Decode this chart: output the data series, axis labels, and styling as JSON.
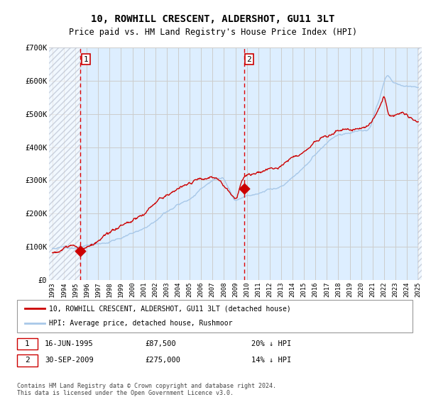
{
  "title": "10, ROWHILL CRESCENT, ALDERSHOT, GU11 3LT",
  "subtitle": "Price paid vs. HM Land Registry's House Price Index (HPI)",
  "ylim": [
    0,
    700000
  ],
  "yticks": [
    0,
    100000,
    200000,
    300000,
    400000,
    500000,
    600000,
    700000
  ],
  "ytick_labels": [
    "£0",
    "£100K",
    "£200K",
    "£300K",
    "£400K",
    "£500K",
    "£600K",
    "£700K"
  ],
  "x_start_year": 1993,
  "x_end_year": 2025,
  "hpi_color": "#a8c8e8",
  "price_color": "#cc0000",
  "vline_color": "#dd0000",
  "purchase1_year": 1995.46,
  "purchase1_price": 87500,
  "purchase1_label": "1",
  "purchase2_year": 2009.75,
  "purchase2_price": 275000,
  "purchase2_label": "2",
  "legend_line1": "10, ROWHILL CRESCENT, ALDERSHOT, GU11 3LT (detached house)",
  "legend_line2": "HPI: Average price, detached house, Rushmoor",
  "note1_label": "1",
  "note1_date": "16-JUN-1995",
  "note1_price": "£87,500",
  "note1_hpi": "20% ↓ HPI",
  "note2_label": "2",
  "note2_date": "30-SEP-2009",
  "note2_price": "£275,000",
  "note2_hpi": "14% ↓ HPI",
  "footer": "Contains HM Land Registry data © Crown copyright and database right 2024.\nThis data is licensed under the Open Government Licence v3.0.",
  "bg_color": "#ddeeff",
  "hatch_color": "#b0b8c8",
  "grid_color": "#cccccc"
}
